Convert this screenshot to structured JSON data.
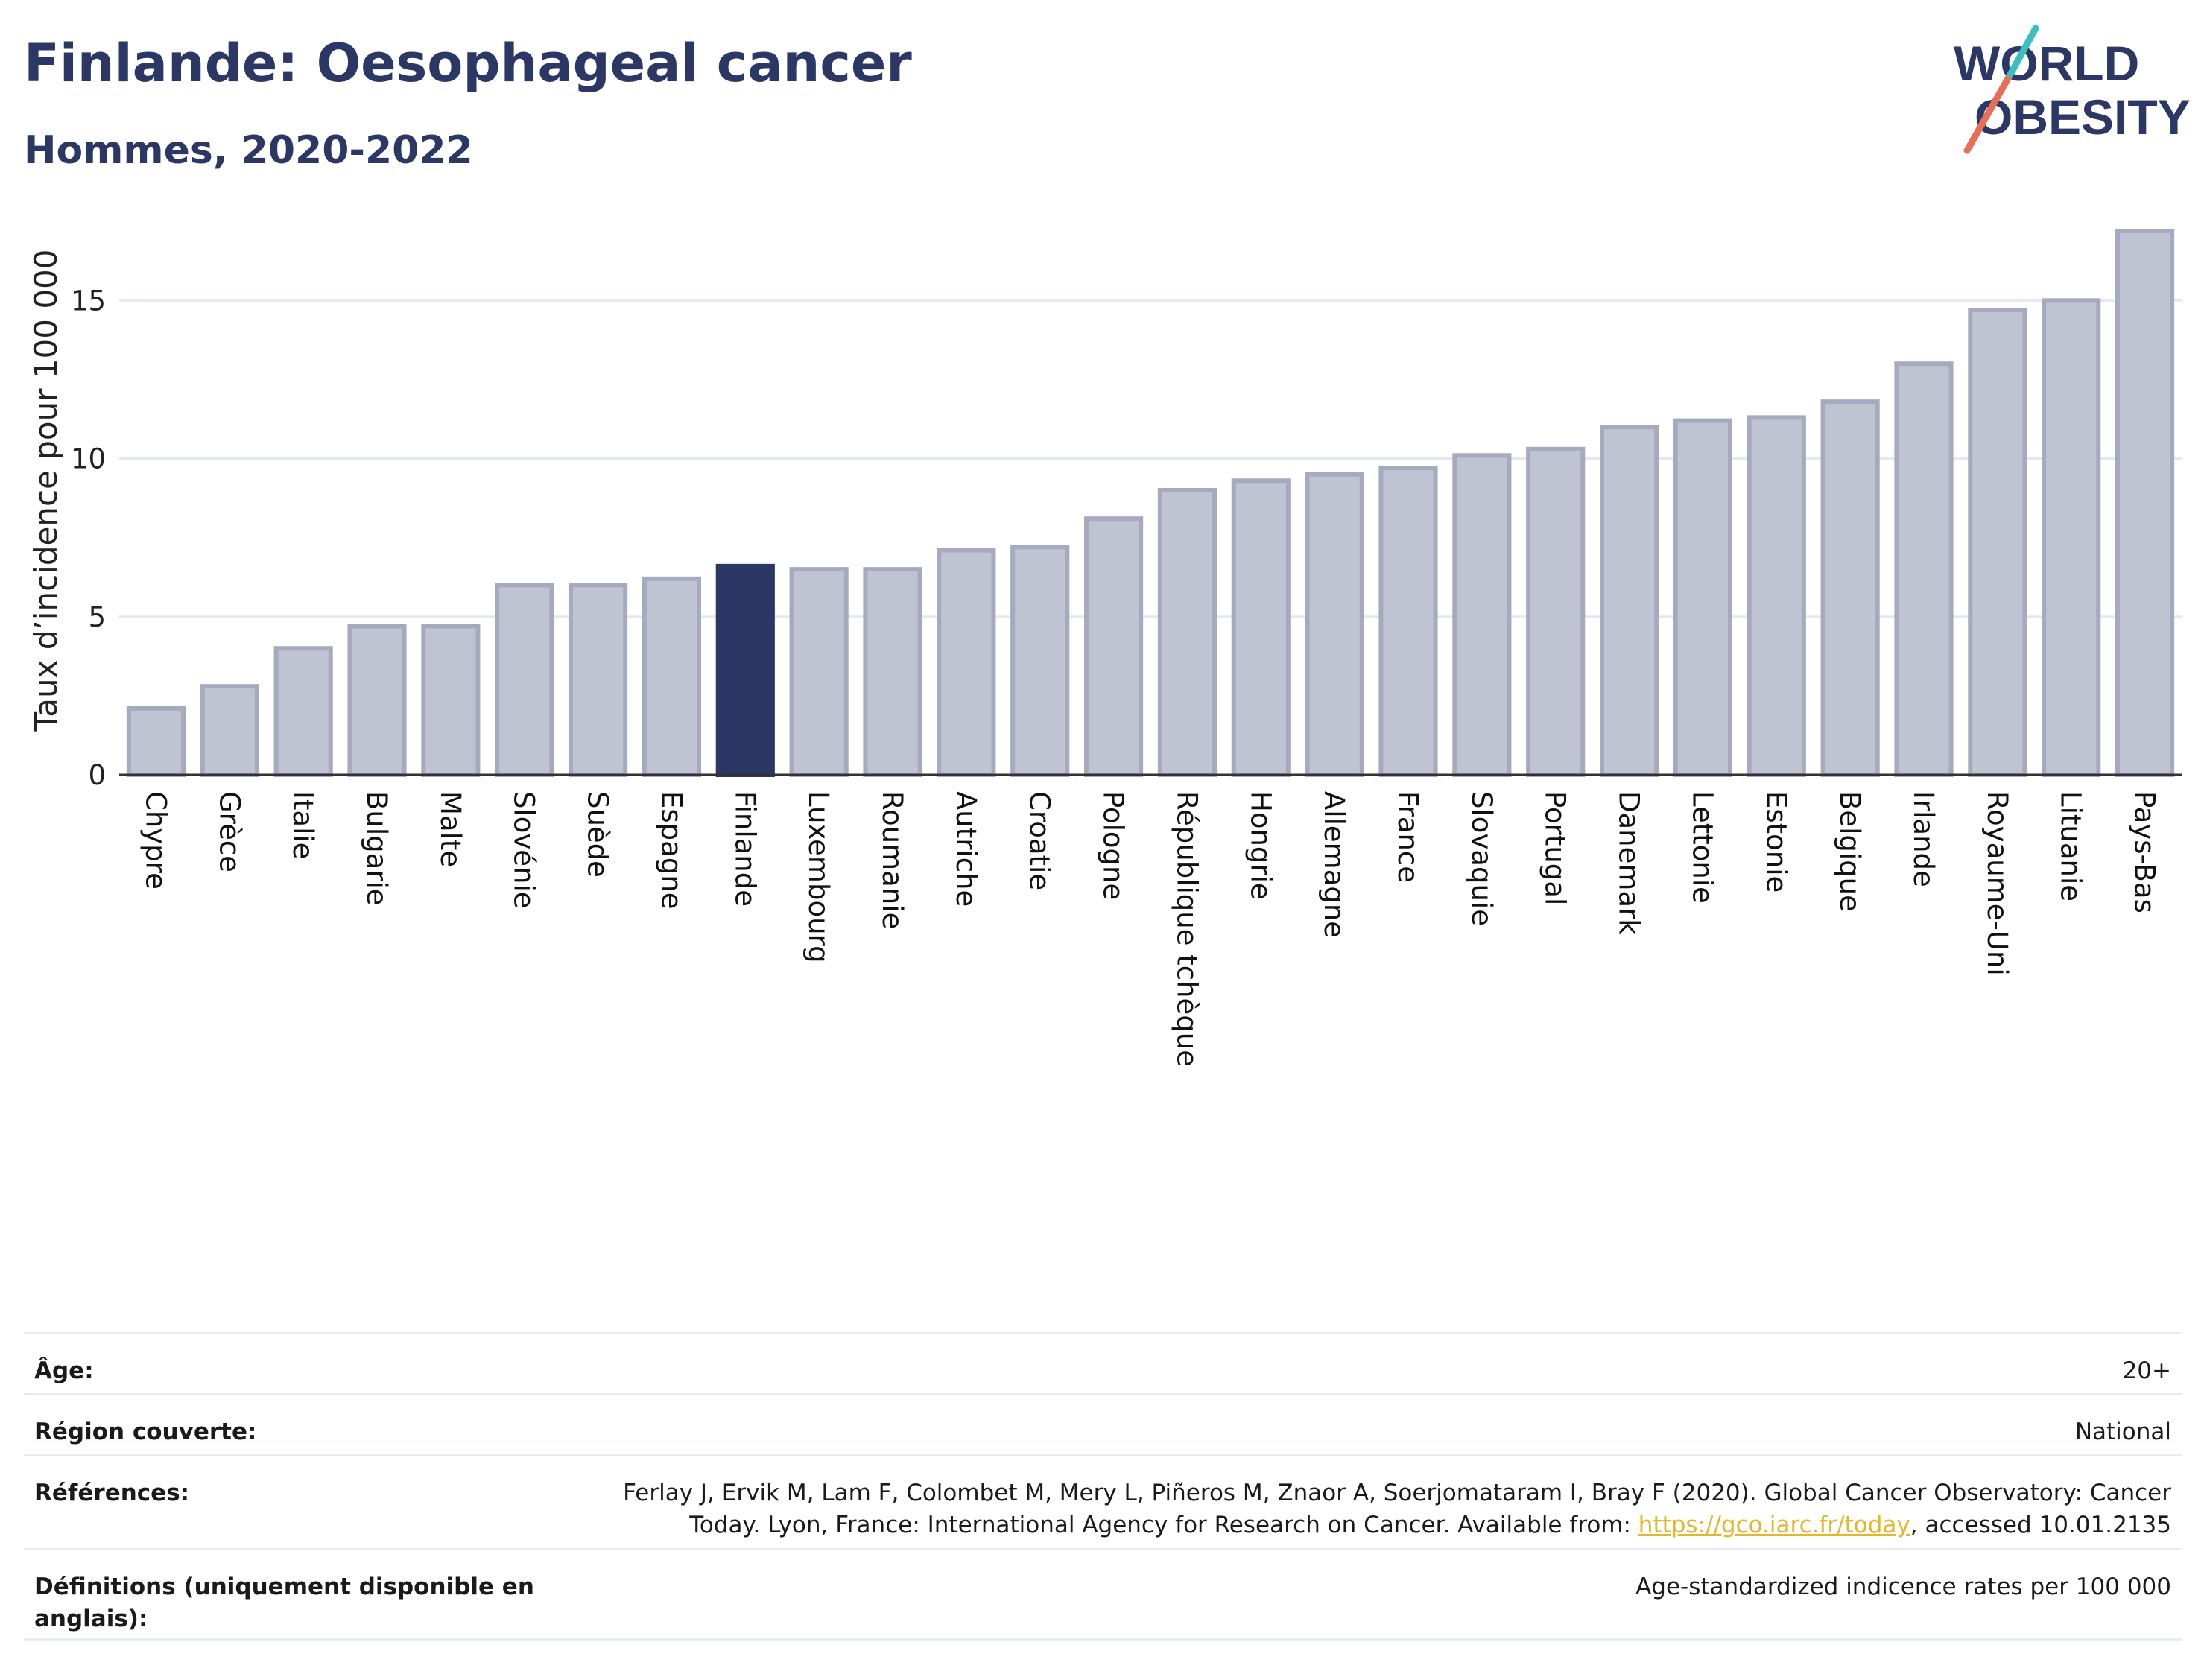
{
  "header": {
    "title": "Finlande: Oesophageal cancer",
    "subtitle": "Hommes, 2020-2022"
  },
  "logo": {
    "line1": "WORLD",
    "line2": "OBESITY"
  },
  "colors": {
    "highlight": "#2b3764",
    "bar": "#c0c4d2",
    "bar_border": "#a5aabf",
    "accent_teal": "#3bbfbf",
    "accent_coral": "#e76f5a"
  },
  "chart_data": {
    "type": "bar",
    "title": "Finlande: Oesophageal cancer",
    "subtitle": "Hommes, 2020-2022",
    "ylabel": "Taux d’incidence pour 100 000",
    "xlabel": "",
    "ylim": [
      0,
      18
    ],
    "yticks": [
      0,
      5,
      10,
      15
    ],
    "grid": true,
    "highlight": "Finlande",
    "categories": [
      "Chypre",
      "Grèce",
      "Italie",
      "Bulgarie",
      "Malte",
      "Slovénie",
      "Suède",
      "Espagne",
      "Finlande",
      "Luxembourg",
      "Roumanie",
      "Autriche",
      "Croatie",
      "Pologne",
      "République tchèque",
      "Hongrie",
      "Allemagne",
      "France",
      "Slovaquie",
      "Portugal",
      "Danemark",
      "Lettonie",
      "Estonie",
      "Belgique",
      "Irlande",
      "Royaume-Uni",
      "Lituanie",
      "Pays-Bas"
    ],
    "values": [
      2.1,
      2.8,
      4.0,
      4.7,
      4.7,
      6.0,
      6.0,
      6.2,
      6.6,
      6.5,
      6.5,
      7.1,
      7.2,
      8.1,
      9.0,
      9.3,
      9.5,
      9.7,
      10.1,
      10.3,
      11.0,
      11.2,
      11.3,
      11.8,
      13.0,
      14.7,
      15.0,
      17.2
    ]
  },
  "meta": [
    {
      "key": "Âge:",
      "value": "20+"
    },
    {
      "key": "Région couverte:",
      "value": "National"
    },
    {
      "key": "Références:",
      "value_pre": "Ferlay J, Ervik M, Lam F, Colombet M, Mery L, Piñeros M, Znaor A, Soerjomataram I, Bray F (2020). Global Cancer Observatory: Cancer Today. Lyon, France: International Agency for Research on Cancer. Available from: ",
      "link": "https://gco.iarc.fr/today",
      "value_post": ", accessed 10.01.2135"
    },
    {
      "key": "Définitions (uniquement disponible en anglais):",
      "value": "Age-standardized indicence rates per 100 000"
    }
  ]
}
